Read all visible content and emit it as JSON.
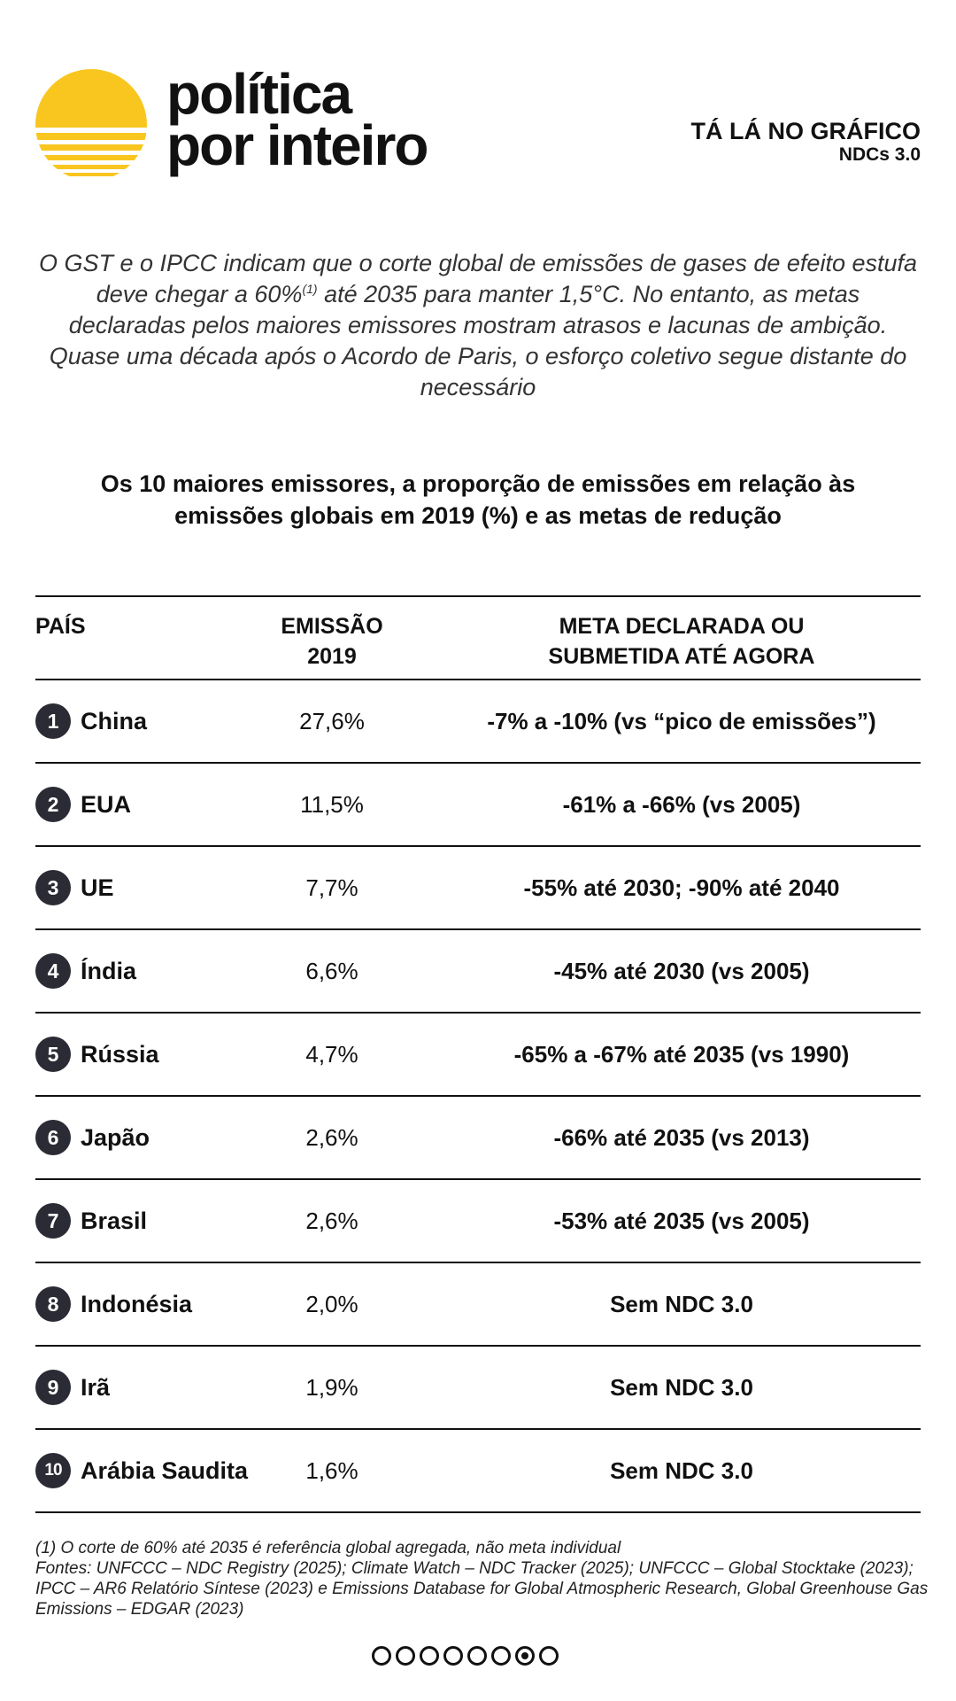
{
  "brand": {
    "line1": "política",
    "line2": "por inteiro",
    "sun_color": "#F9C61F"
  },
  "section": {
    "title": "TÁ LÁ NO GRÁFICO",
    "subtitle": "NDCs 3.0"
  },
  "intro": {
    "before_sup": "O GST e o IPCC indicam que o corte global de emissões de gases de efeito estufa deve chegar a 60%",
    "sup": "(1)",
    "after_sup": " até 2035 para manter 1,5°C. No entanto, as metas declaradas pelos maiores emissores mostram atrasos e lacunas de ambição. Quase uma década após o Acordo de Paris, o esforço coletivo segue distante do necessário"
  },
  "table_title": "Os 10 maiores emissores, a proporção de emissões em relação às emissões globais em 2019 (%) e as metas de redução",
  "table": {
    "headers": {
      "country": "PAÍS",
      "emission_l1": "EMISSÃO",
      "emission_l2": "2019",
      "target_l1": "META DECLARADA OU",
      "target_l2": "SUBMETIDA ATÉ AGORA"
    },
    "rows": [
      {
        "rank": "1",
        "country": "China",
        "emission": "27,6%",
        "target": "-7% a -10% (vs “pico de emissões”)"
      },
      {
        "rank": "2",
        "country": "EUA",
        "emission": "11,5%",
        "target": "-61% a -66% (vs 2005)"
      },
      {
        "rank": "3",
        "country": "UE",
        "emission": "7,7%",
        "target": "-55% até 2030; -90% até 2040"
      },
      {
        "rank": "4",
        "country": "Índia",
        "emission": "6,6%",
        "target": "-45% até 2030 (vs 2005)"
      },
      {
        "rank": "5",
        "country": "Rússia",
        "emission": "4,7%",
        "target": "-65% a -67% até 2035 (vs 1990)"
      },
      {
        "rank": "6",
        "country": "Japão",
        "emission": "2,6%",
        "target": "-66% até 2035 (vs 2013)"
      },
      {
        "rank": "7",
        "country": "Brasil",
        "emission": "2,6%",
        "target": "-53% até 2035 (vs 2005)"
      },
      {
        "rank": "8",
        "country": "Indonésia",
        "emission": "2,0%",
        "target": "Sem NDC 3.0"
      },
      {
        "rank": "9",
        "country": "Irã",
        "emission": "1,9%",
        "target": "Sem NDC 3.0"
      },
      {
        "rank": "10",
        "country": "Arábia Saudita",
        "emission": "1,6%",
        "target": "Sem NDC 3.0"
      }
    ]
  },
  "footnotes": {
    "note1": "(1) O corte de 60% até 2035 é referência global agregada, não meta individual",
    "sources": "Fontes: UNFCCC – NDC Registry (2025); Climate Watch – NDC Tracker (2025); UNFCCC – Global Stocktake (2023); IPCC – AR6 Relatório Síntese (2023) e Emissions Database for Global Atmospheric Research, Global Greenhouse Gas Emissions – EDGAR (2023)"
  },
  "pagination": {
    "total": 8,
    "current": 7
  }
}
